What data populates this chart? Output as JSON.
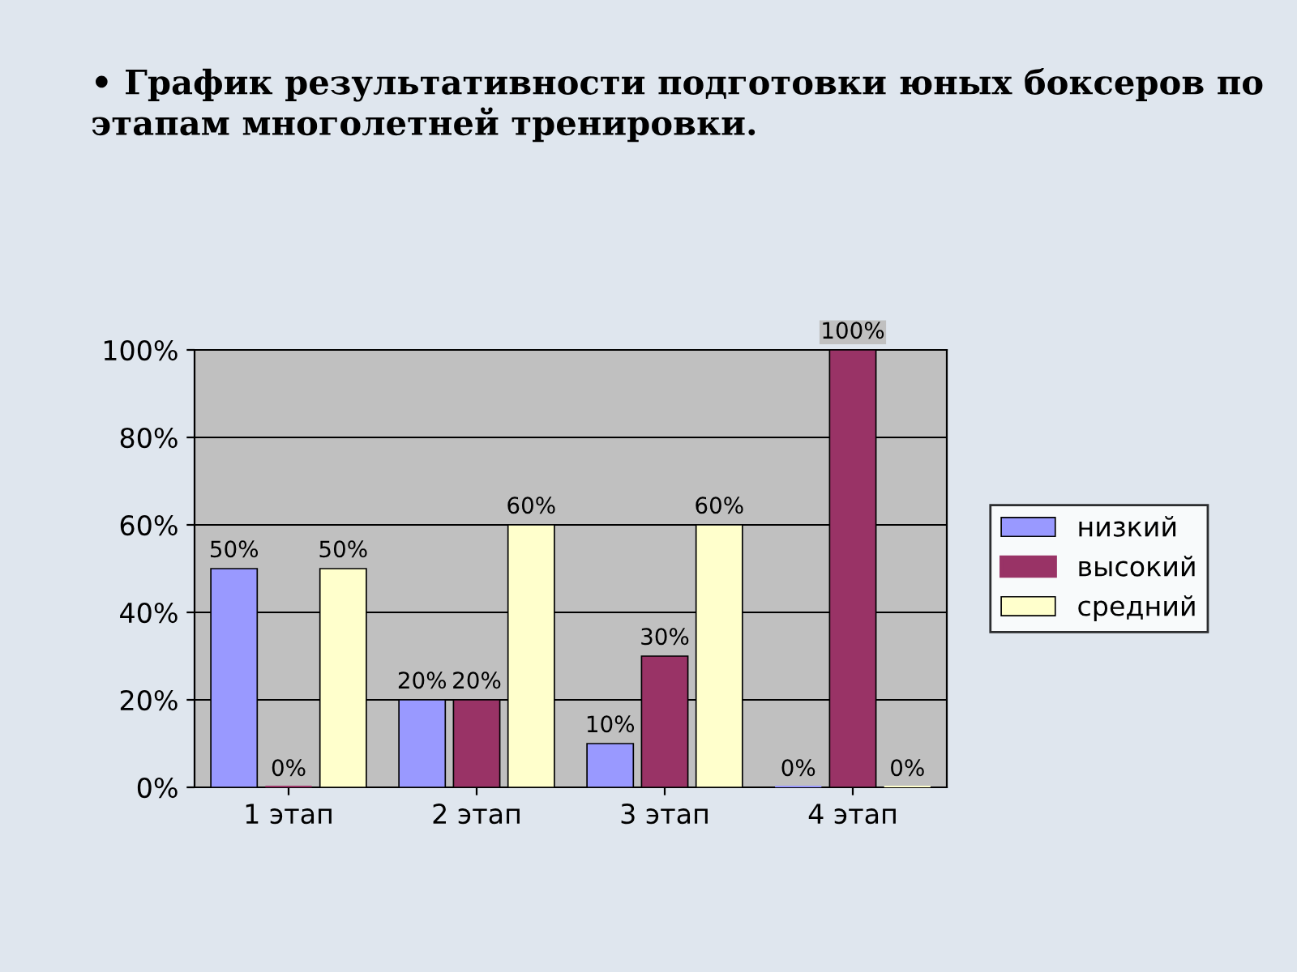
{
  "chart_data": {
    "type": "bar",
    "title": "• График результативности подготовки юных боксеров по этапам многолетней тренировки.",
    "categories": [
      "1 этап",
      "2 этап",
      "3 этап",
      "4 этап"
    ],
    "series": [
      {
        "name": "низкий",
        "color": "#9999ff",
        "values": [
          50,
          20,
          10,
          0
        ],
        "value_labels": [
          "50%",
          "20%",
          "10%",
          "0%"
        ]
      },
      {
        "name": "высокий",
        "color": "#993366",
        "values": [
          0,
          20,
          30,
          100
        ],
        "value_labels": [
          "0%",
          "20%",
          "30%",
          "100%"
        ]
      },
      {
        "name": "средний",
        "color": "#ffffcc",
        "values": [
          50,
          60,
          60,
          0
        ],
        "value_labels": [
          "50%",
          "60%",
          "60%",
          "0%"
        ]
      }
    ],
    "ylim": [
      0,
      100
    ],
    "yticks": [
      {
        "value": 0,
        "label": "0%"
      },
      {
        "value": 20,
        "label": "20%"
      },
      {
        "value": 40,
        "label": "40%"
      },
      {
        "value": 60,
        "label": "60%"
      },
      {
        "value": 80,
        "label": "80%"
      },
      {
        "value": 100,
        "label": "100%"
      }
    ],
    "grid": "y",
    "legend": "right"
  }
}
